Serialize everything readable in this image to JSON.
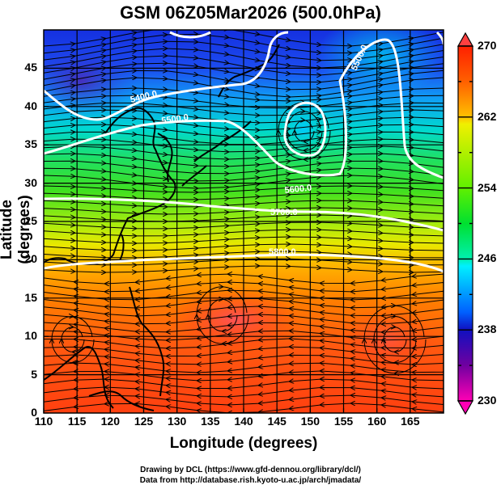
{
  "title": "GSM 06Z05Mar2026 (500.0hPa)",
  "axes": {
    "xlabel": "Longitude (degrees)",
    "ylabel": "Latitude  (degrees)",
    "x_ticks": [
      "110",
      "115",
      "120",
      "125",
      "130",
      "135",
      "140",
      "145",
      "150",
      "155",
      "160",
      "165"
    ],
    "y_ticks": [
      "0",
      "5",
      "10",
      "15",
      "20",
      "25",
      "30",
      "35",
      "40",
      "45"
    ],
    "x_range": [
      110,
      170
    ],
    "y_range": [
      0,
      50
    ]
  },
  "colorbar": {
    "ticks": [
      "270",
      "262",
      "254",
      "246",
      "238",
      "230"
    ],
    "range": [
      230,
      270
    ],
    "colors": [
      "#ff00b4",
      "#9a009a",
      "#1010c0",
      "#0040ff",
      "#00c8ff",
      "#00f0b0",
      "#00e030",
      "#60f000",
      "#f0f000",
      "#ffb000",
      "#ff6000",
      "#ff2000"
    ]
  },
  "contour_labels": [
    "5400.0",
    "5500.0",
    "5600.0",
    "5700.0",
    "5800.0",
    "5500.0"
  ],
  "credits": {
    "line1": "Drawing by DCL (https://www.gfd-dennou.org/library/dcl/)",
    "line2": "Data from http://database.rish.kyoto-u.ac.jp/arch/jmadata/"
  }
}
